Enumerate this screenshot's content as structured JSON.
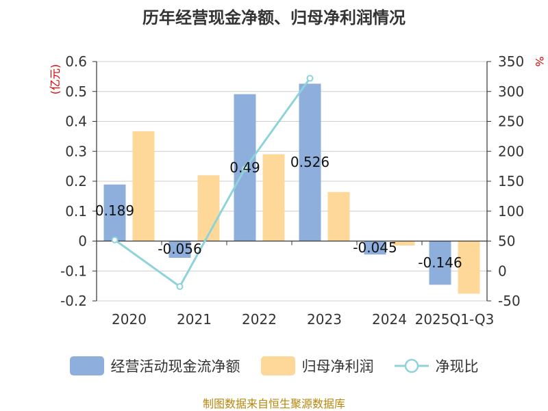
{
  "title": "历年经营现金净额、归母净利润情况",
  "footer": "制图数据来自恒生聚源数据库",
  "colors": {
    "cash": "#8eaedc",
    "profit": "#fdd898",
    "ratio": "#8dd3d9",
    "left_unit": "#e00000",
    "footer": "#b8860b"
  },
  "chart_data": {
    "type": "bar",
    "title": "历年经营现金净额、归母净利润情况",
    "categories": [
      "2020",
      "2021",
      "2022",
      "2023",
      "2024",
      "2025Q1-Q3"
    ],
    "y_left": {
      "unit": "(亿元)",
      "ylim": [
        -0.2,
        0.6
      ],
      "ticks": [
        "0.6",
        "0.5",
        "0.4",
        "0.3",
        "0.2",
        "0.1",
        "0",
        "-0.1",
        "-0.2"
      ]
    },
    "y_right": {
      "unit": "%",
      "ylim": [
        -50,
        350
      ],
      "ticks": [
        "350",
        "300",
        "250",
        "200",
        "150",
        "100",
        "50",
        "0",
        "-50"
      ]
    },
    "grid": true,
    "legend_position": "bottom",
    "series": [
      {
        "name": "经营活动现金流净额",
        "type": "bar",
        "axis": "left",
        "values": [
          0.189,
          -0.056,
          0.491,
          0.526,
          -0.045,
          -0.146
        ],
        "labels": [
          "0.189",
          "-0.056",
          "0.49",
          "0.526",
          "-0.045",
          "-0.146"
        ]
      },
      {
        "name": "归母净利润",
        "type": "bar",
        "axis": "left",
        "values": [
          0.367,
          0.22,
          0.29,
          0.164,
          -0.015,
          -0.176
        ]
      },
      {
        "name": "净现比",
        "type": "line",
        "axis": "right",
        "values": [
          52,
          -26,
          171,
          322,
          null,
          null
        ]
      }
    ]
  }
}
